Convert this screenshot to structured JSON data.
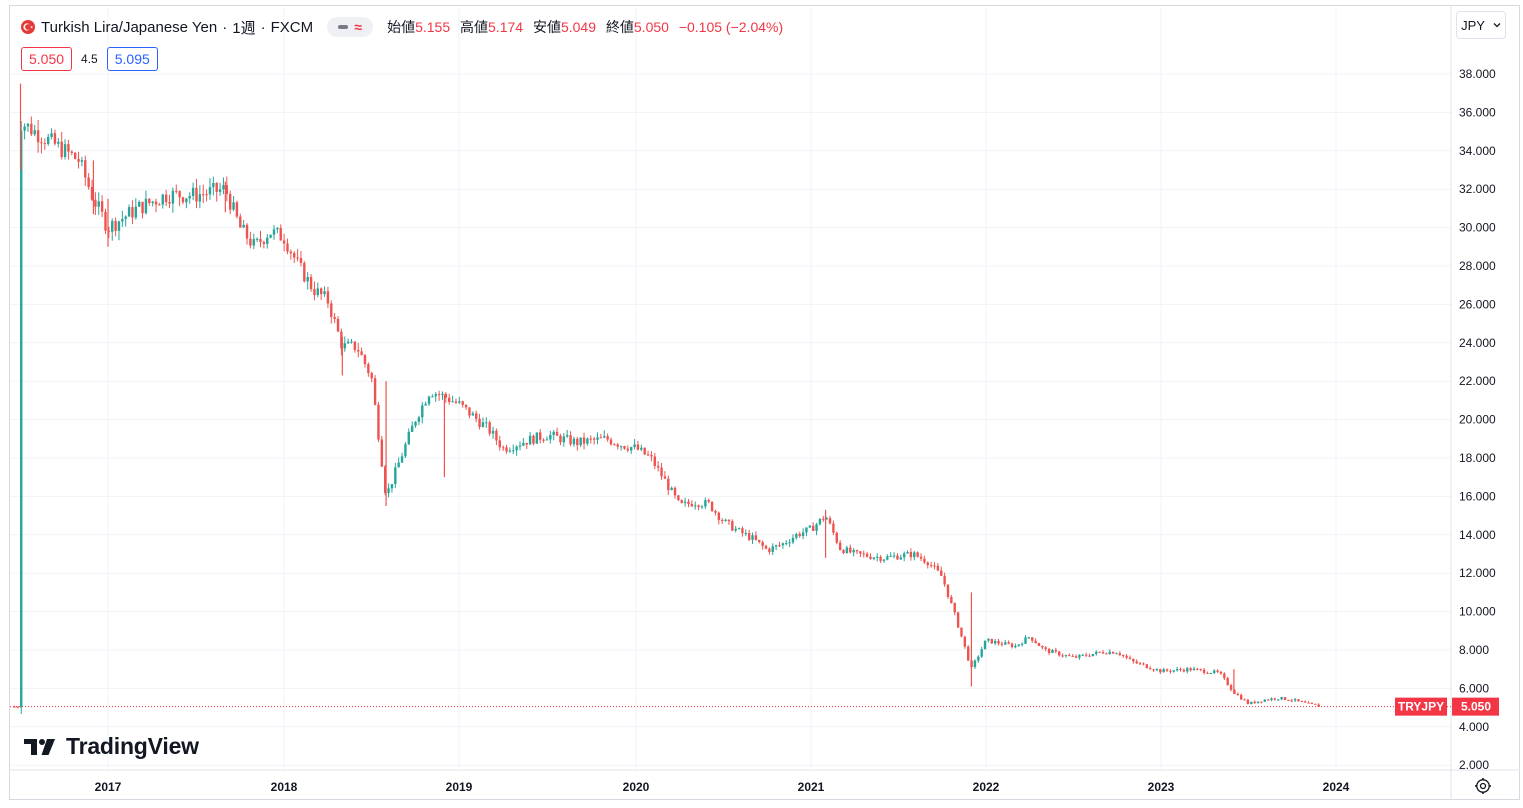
{
  "header": {
    "symbol_title": "Turkish Lira/Japanese Yen",
    "interval": "1週",
    "exchange": "FXCM",
    "sep": "·",
    "open_label": "始値",
    "open_value": "5.155",
    "high_label": "高値",
    "high_value": "5.174",
    "low_label": "安値",
    "low_value": "5.049",
    "close_label": "終値",
    "close_value": "5.050",
    "change": "−0.105 (−2.04%)",
    "pill_symbol": "≈"
  },
  "quote": {
    "sell": "5.050",
    "spread": "4.5",
    "buy": "5.095"
  },
  "currency_button": {
    "label": "JPY",
    "icon": "chevron-down-icon"
  },
  "price_axis": {
    "labels": [
      "38.000",
      "36.000",
      "34.000",
      "32.000",
      "30.000",
      "28.000",
      "26.000",
      "24.000",
      "22.000",
      "20.000",
      "18.000",
      "16.000",
      "14.000",
      "12.000",
      "10.000",
      "8.000",
      "6.000",
      "4.000",
      "2.000"
    ]
  },
  "time_axis": {
    "labels": [
      "2017",
      "2018",
      "2019",
      "2020",
      "2021",
      "2022",
      "2023",
      "2024"
    ]
  },
  "last_price": {
    "symbol": "TRYJPY",
    "value": "5.050"
  },
  "logo": {
    "text": "TradingView",
    "icon": "tradingview-logo-icon"
  },
  "settings": {
    "icon": "gear-icon"
  },
  "colors": {
    "up": "#26a69a",
    "down": "#ef5350",
    "text": "#131722",
    "grid": "#f0f3fa",
    "accent": "#f23645"
  },
  "chart_data": {
    "type": "candlestick",
    "title": "Turkish Lira/Japanese Yen · 1週 · FXCM",
    "x_axis": "time (weekly)",
    "y_axis_unit": "JPY",
    "ylim": [
      1.0,
      39.5
    ],
    "xlim": [
      "2016-06",
      "2024-06"
    ],
    "grid": true,
    "last_close": 5.05,
    "trend_points": [
      {
        "date": "2016-07",
        "close": 35.5
      },
      {
        "date": "2016-09",
        "close": 34.5
      },
      {
        "date": "2016-11",
        "close": 33.5
      },
      {
        "date": "2016-12",
        "close": 31.5
      },
      {
        "date": "2017-01",
        "close": 30.0
      },
      {
        "date": "2017-03",
        "close": 31.0
      },
      {
        "date": "2017-05",
        "close": 31.7
      },
      {
        "date": "2017-07",
        "close": 31.7
      },
      {
        "date": "2017-09",
        "close": 32.0
      },
      {
        "date": "2017-10",
        "close": 30.0
      },
      {
        "date": "2017-11",
        "close": 29.0
      },
      {
        "date": "2017-12",
        "close": 29.8
      },
      {
        "date": "2018-01",
        "close": 29.5
      },
      {
        "date": "2018-02",
        "close": 28.0
      },
      {
        "date": "2018-03",
        "close": 26.8
      },
      {
        "date": "2018-04",
        "close": 26.2
      },
      {
        "date": "2018-05",
        "close": 23.8
      },
      {
        "date": "2018-06",
        "close": 23.8
      },
      {
        "date": "2018-07",
        "close": 22.2
      },
      {
        "date": "2018-08",
        "close": 16.0
      },
      {
        "date": "2018-09",
        "close": 18.0
      },
      {
        "date": "2018-10",
        "close": 20.0
      },
      {
        "date": "2018-11",
        "close": 21.5
      },
      {
        "date": "2018-12",
        "close": 21.2
      },
      {
        "date": "2019-01",
        "close": 20.8
      },
      {
        "date": "2019-03",
        "close": 19.5
      },
      {
        "date": "2019-04",
        "close": 18.5
      },
      {
        "date": "2019-06",
        "close": 19.0
      },
      {
        "date": "2019-07",
        "close": 19.2
      },
      {
        "date": "2019-09",
        "close": 18.8
      },
      {
        "date": "2019-11",
        "close": 19.0
      },
      {
        "date": "2019-12",
        "close": 18.7
      },
      {
        "date": "2020-01",
        "close": 18.5
      },
      {
        "date": "2020-02",
        "close": 18.0
      },
      {
        "date": "2020-03",
        "close": 16.8
      },
      {
        "date": "2020-04",
        "close": 15.5
      },
      {
        "date": "2020-05",
        "close": 15.7
      },
      {
        "date": "2020-06",
        "close": 15.6
      },
      {
        "date": "2020-07",
        "close": 14.7
      },
      {
        "date": "2020-08",
        "close": 14.2
      },
      {
        "date": "2020-09",
        "close": 13.8
      },
      {
        "date": "2020-10",
        "close": 13.2
      },
      {
        "date": "2020-11",
        "close": 13.5
      },
      {
        "date": "2020-12",
        "close": 14.0
      },
      {
        "date": "2021-01",
        "close": 14.3
      },
      {
        "date": "2021-02",
        "close": 15.0
      },
      {
        "date": "2021-03",
        "close": 13.3
      },
      {
        "date": "2021-04",
        "close": 13.0
      },
      {
        "date": "2021-06",
        "close": 12.8
      },
      {
        "date": "2021-08",
        "close": 13.0
      },
      {
        "date": "2021-09",
        "close": 12.6
      },
      {
        "date": "2021-10",
        "close": 11.8
      },
      {
        "date": "2021-11",
        "close": 9.5
      },
      {
        "date": "2021-12",
        "close": 7.0
      },
      {
        "date": "2022-01",
        "close": 8.5
      },
      {
        "date": "2022-03",
        "close": 8.2
      },
      {
        "date": "2022-04",
        "close": 8.7
      },
      {
        "date": "2022-05",
        "close": 8.0
      },
      {
        "date": "2022-07",
        "close": 7.6
      },
      {
        "date": "2022-09",
        "close": 7.9
      },
      {
        "date": "2022-10",
        "close": 7.9
      },
      {
        "date": "2022-11",
        "close": 7.4
      },
      {
        "date": "2023-01",
        "close": 6.9
      },
      {
        "date": "2023-03",
        "close": 7.0
      },
      {
        "date": "2023-05",
        "close": 6.8
      },
      {
        "date": "2023-06",
        "close": 5.8
      },
      {
        "date": "2023-07",
        "close": 5.2
      },
      {
        "date": "2023-08",
        "close": 5.4
      },
      {
        "date": "2023-09",
        "close": 5.5
      },
      {
        "date": "2023-10",
        "close": 5.4
      },
      {
        "date": "2023-11",
        "close": 5.2
      },
      {
        "date": "2023-12",
        "close": 5.05
      }
    ],
    "spikes": [
      {
        "date": "2016-07",
        "high": 37.5,
        "low": 33.0
      },
      {
        "date": "2016-12",
        "high": 33.5,
        "low": 30.7
      },
      {
        "date": "2017-01",
        "high": 31.5,
        "low": 29.0
      },
      {
        "date": "2017-09",
        "high": 32.4,
        "low": 30.8
      },
      {
        "date": "2018-05",
        "high": 24.3,
        "low": 22.3
      },
      {
        "date": "2018-08",
        "high": 22.0,
        "low": 15.5
      },
      {
        "date": "2018-12",
        "high": 21.3,
        "low": 17.0
      },
      {
        "date": "2021-02",
        "high": 15.3,
        "low": 12.8
      },
      {
        "date": "2021-12",
        "high": 11.0,
        "low": 6.1
      },
      {
        "date": "2023-06",
        "high": 7.0,
        "low": 5.7
      }
    ]
  }
}
